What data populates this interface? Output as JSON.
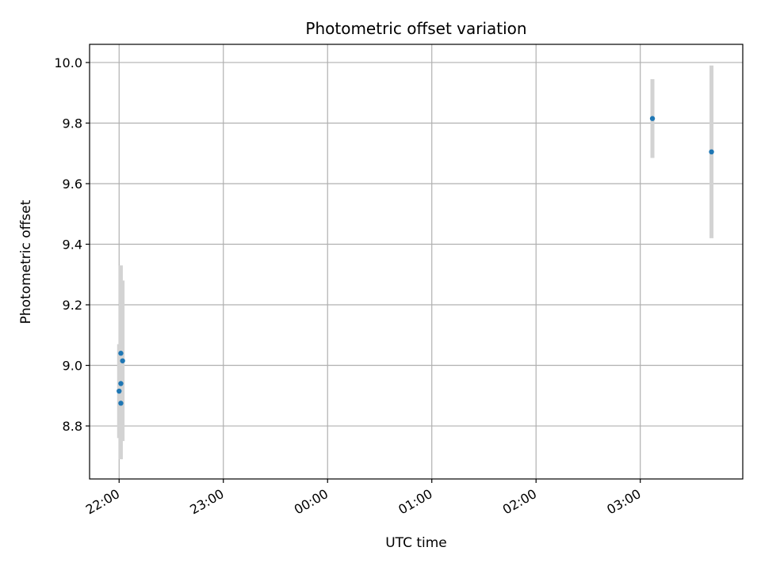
{
  "chart_data": {
    "type": "scatter",
    "title": "Photometric offset variation",
    "xlabel": "UTC time",
    "ylabel": "Photometric offset",
    "xlim": [
      "21:43",
      "03:59"
    ],
    "ylim": [
      8.625,
      10.06
    ],
    "grid": true,
    "x_ticks": [
      "22:00",
      "23:00",
      "00:00",
      "01:00",
      "02:00",
      "03:00"
    ],
    "y_ticks": [
      "8.8",
      "9.0",
      "9.2",
      "9.4",
      "9.6",
      "9.8",
      "10.0"
    ],
    "point_color": "#1f77b4",
    "errorbar_color": "#d3d3d3",
    "grid_color": "#b0b0b0",
    "series": [
      {
        "points": [
          {
            "x": "22:00",
            "y": 8.915,
            "yerr": 0.155
          },
          {
            "x": "22:01",
            "y": 9.04,
            "yerr": 0.29
          },
          {
            "x": "22:01",
            "y": 8.94,
            "yerr": 0.25
          },
          {
            "x": "22:01",
            "y": 8.875,
            "yerr": 0.125
          },
          {
            "x": "22:02",
            "y": 9.015,
            "yerr": 0.265
          },
          {
            "x": "03:07",
            "y": 9.815,
            "yerr": 0.13
          },
          {
            "x": "03:41",
            "y": 9.705,
            "yerr": 0.285
          }
        ]
      }
    ]
  }
}
